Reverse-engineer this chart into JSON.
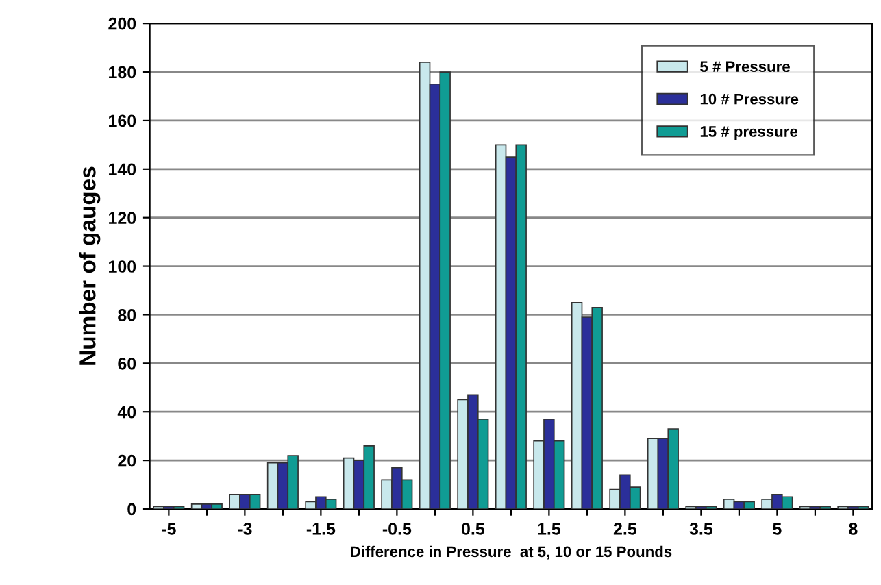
{
  "chart_data": {
    "type": "bar",
    "xlabel": "Difference in Pressure  at 5, 10 or 15 Pounds",
    "ylabel": "Number of gauges",
    "categories": [
      "-5",
      null,
      "-3",
      null,
      "-1.5",
      null,
      "-0.5",
      null,
      "0.5",
      null,
      "1.5",
      null,
      "2.5",
      null,
      "3.5",
      null,
      "5",
      null,
      "8"
    ],
    "series": [
      {
        "name": "5 # Pressure",
        "color": "#c8e8ec",
        "values": [
          1,
          2,
          6,
          19,
          3,
          21,
          12,
          184,
          45,
          150,
          28,
          85,
          8,
          29,
          1,
          4,
          4,
          1,
          1
        ]
      },
      {
        "name": "10 # Pressure",
        "color": "#2b2f9a",
        "values": [
          1,
          2,
          6,
          19,
          5,
          20,
          17,
          175,
          47,
          145,
          37,
          79,
          14,
          29,
          1,
          3,
          6,
          1,
          1
        ]
      },
      {
        "name": "15 # pressure",
        "color": "#109c94",
        "values": [
          1,
          2,
          6,
          22,
          4,
          26,
          12,
          180,
          37,
          150,
          28,
          83,
          9,
          33,
          1,
          3,
          5,
          1,
          1
        ]
      }
    ],
    "ylim": [
      0,
      200
    ],
    "yticks": [
      0,
      20,
      40,
      60,
      80,
      100,
      120,
      140,
      160,
      180,
      200
    ],
    "grid": "y",
    "legend": "top right"
  }
}
